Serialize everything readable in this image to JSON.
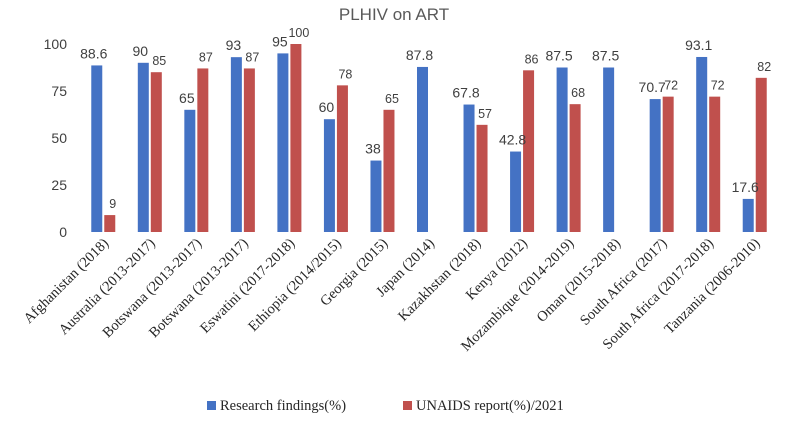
{
  "chart_data": {
    "type": "bar",
    "title": "PLHIV on ART",
    "xlabel": "",
    "ylabel": "",
    "ylim": [
      0,
      100
    ],
    "yticks": [
      0,
      25,
      50,
      75,
      100
    ],
    "grid": false,
    "legend_position": "bottom",
    "categories": [
      "Afghanistan (2018)",
      "Australia (2013-2017)",
      "Botswana (2013-2017)",
      "Botswana (2013-2017)",
      "Eswatini (2017-2018)",
      "Ethiopia (2014/2015)",
      "Georgia (2015)",
      "Japan (2014)",
      "Kazakhstan (2018)",
      "Kenya (2012)",
      "Mozambique (2014-2019)",
      "Oman (2015-2018)",
      "South Africa (2017)",
      "South Africa (2017-2018)",
      "Tanzania (2006-2010)"
    ],
    "series": [
      {
        "name": "Research findings(%)",
        "color": "#4472C4",
        "values": [
          88.6,
          90,
          65,
          93,
          95,
          60,
          38,
          87.8,
          67.8,
          42.8,
          87.5,
          87.5,
          70.7,
          93.1,
          17.6
        ],
        "labels": [
          "88.6",
          "90",
          "65",
          "93",
          "95",
          "60",
          "38",
          "87.8",
          "67.8",
          "42.8",
          "87.5",
          "87.5",
          "70.7",
          "93.1",
          "17.6"
        ]
      },
      {
        "name": "UNAIDS report(%)/2021",
        "color": "#C0504D",
        "values": [
          9,
          85,
          87,
          87,
          100,
          78,
          65,
          null,
          57,
          86,
          68,
          null,
          72,
          72,
          82
        ],
        "labels": [
          "9",
          "85",
          "87",
          "87",
          "100",
          "78",
          "65",
          "",
          "57",
          "86",
          "68",
          "",
          "72",
          "72",
          "82"
        ]
      }
    ]
  }
}
